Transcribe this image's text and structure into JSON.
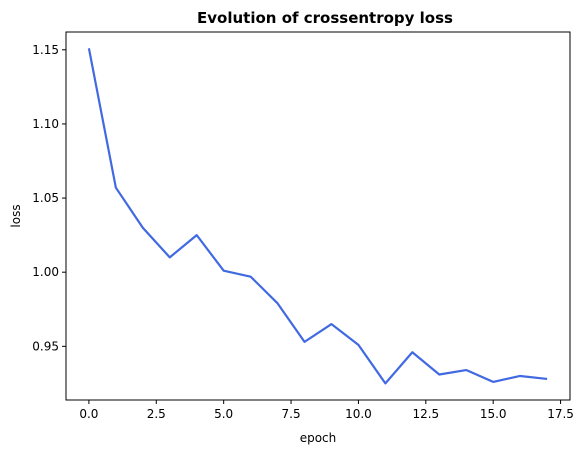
{
  "chart_data": {
    "type": "line",
    "title": "Evolution of crossentropy loss",
    "xlabel": "epoch",
    "ylabel": "loss",
    "xlim": [
      -0.85,
      17.85
    ],
    "ylim": [
      0.9138,
      1.162
    ],
    "x_ticks": [
      0.0,
      2.5,
      5.0,
      7.5,
      10.0,
      12.5,
      15.0,
      17.5
    ],
    "x_tick_labels": [
      "0.0",
      "2.5",
      "5.0",
      "7.5",
      "10.0",
      "12.5",
      "15.0",
      "17.5"
    ],
    "y_ticks": [
      0.95,
      1.0,
      1.05,
      1.1,
      1.15
    ],
    "y_tick_labels": [
      "0.95",
      "1.00",
      "1.05",
      "1.10",
      "1.15"
    ],
    "grid": false,
    "series": [
      {
        "color": "#4169e1",
        "x": [
          0,
          1,
          2,
          3,
          4,
          5,
          6,
          7,
          8,
          9,
          10,
          11,
          12,
          13,
          14,
          15,
          16,
          17
        ],
        "values": [
          1.151,
          1.057,
          1.03,
          1.01,
          1.025,
          1.001,
          0.997,
          0.979,
          0.953,
          0.965,
          0.951,
          0.925,
          0.946,
          0.931,
          0.934,
          0.926,
          0.93,
          0.928
        ]
      }
    ]
  }
}
